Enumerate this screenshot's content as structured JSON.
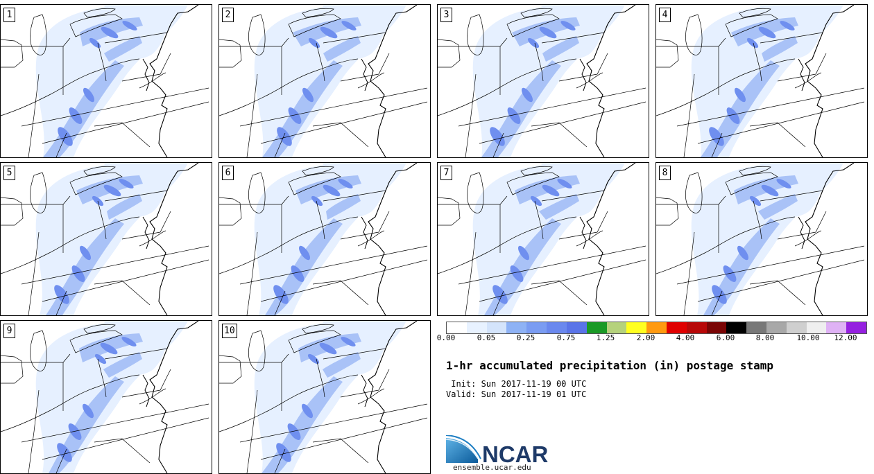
{
  "panels": [
    {
      "label": "1"
    },
    {
      "label": "2"
    },
    {
      "label": "3"
    },
    {
      "label": "4"
    },
    {
      "label": "5"
    },
    {
      "label": "6"
    },
    {
      "label": "7"
    },
    {
      "label": "8"
    },
    {
      "label": "9"
    },
    {
      "label": "10"
    }
  ],
  "colorbar": {
    "colors": [
      "#ffffff",
      "#e8f2ff",
      "#d4e4fb",
      "#8eb2f5",
      "#7a9cf2",
      "#6a88ee",
      "#5a74e8",
      "#1a9a26",
      "#b5d27c",
      "#ffff20",
      "#ff9a10",
      "#e00000",
      "#b80808",
      "#7a0505",
      "#000000",
      "#787878",
      "#a8a8a8",
      "#cfcfcf",
      "#efefef",
      "#dfb2f5",
      "#9520e0"
    ],
    "tick_labels": [
      "0.00",
      "0.05",
      "0.25",
      "0.75",
      "1.25",
      "2.00",
      "4.00",
      "6.00",
      "8.00",
      "10.00",
      "12.00"
    ]
  },
  "title": "1-hr accumulated precipitation (in) postage stamp",
  "init_line": " Init: Sun 2017-11-19 00 UTC",
  "valid_line": "Valid: Sun 2017-11-19 01 UTC",
  "logo": {
    "brand": "NCAR",
    "url": "ensemble.ucar.edu"
  },
  "precip_colors": {
    "light": "#e6f0ff",
    "medium": "#a9c2f7",
    "heavy": "#6f8fef"
  }
}
